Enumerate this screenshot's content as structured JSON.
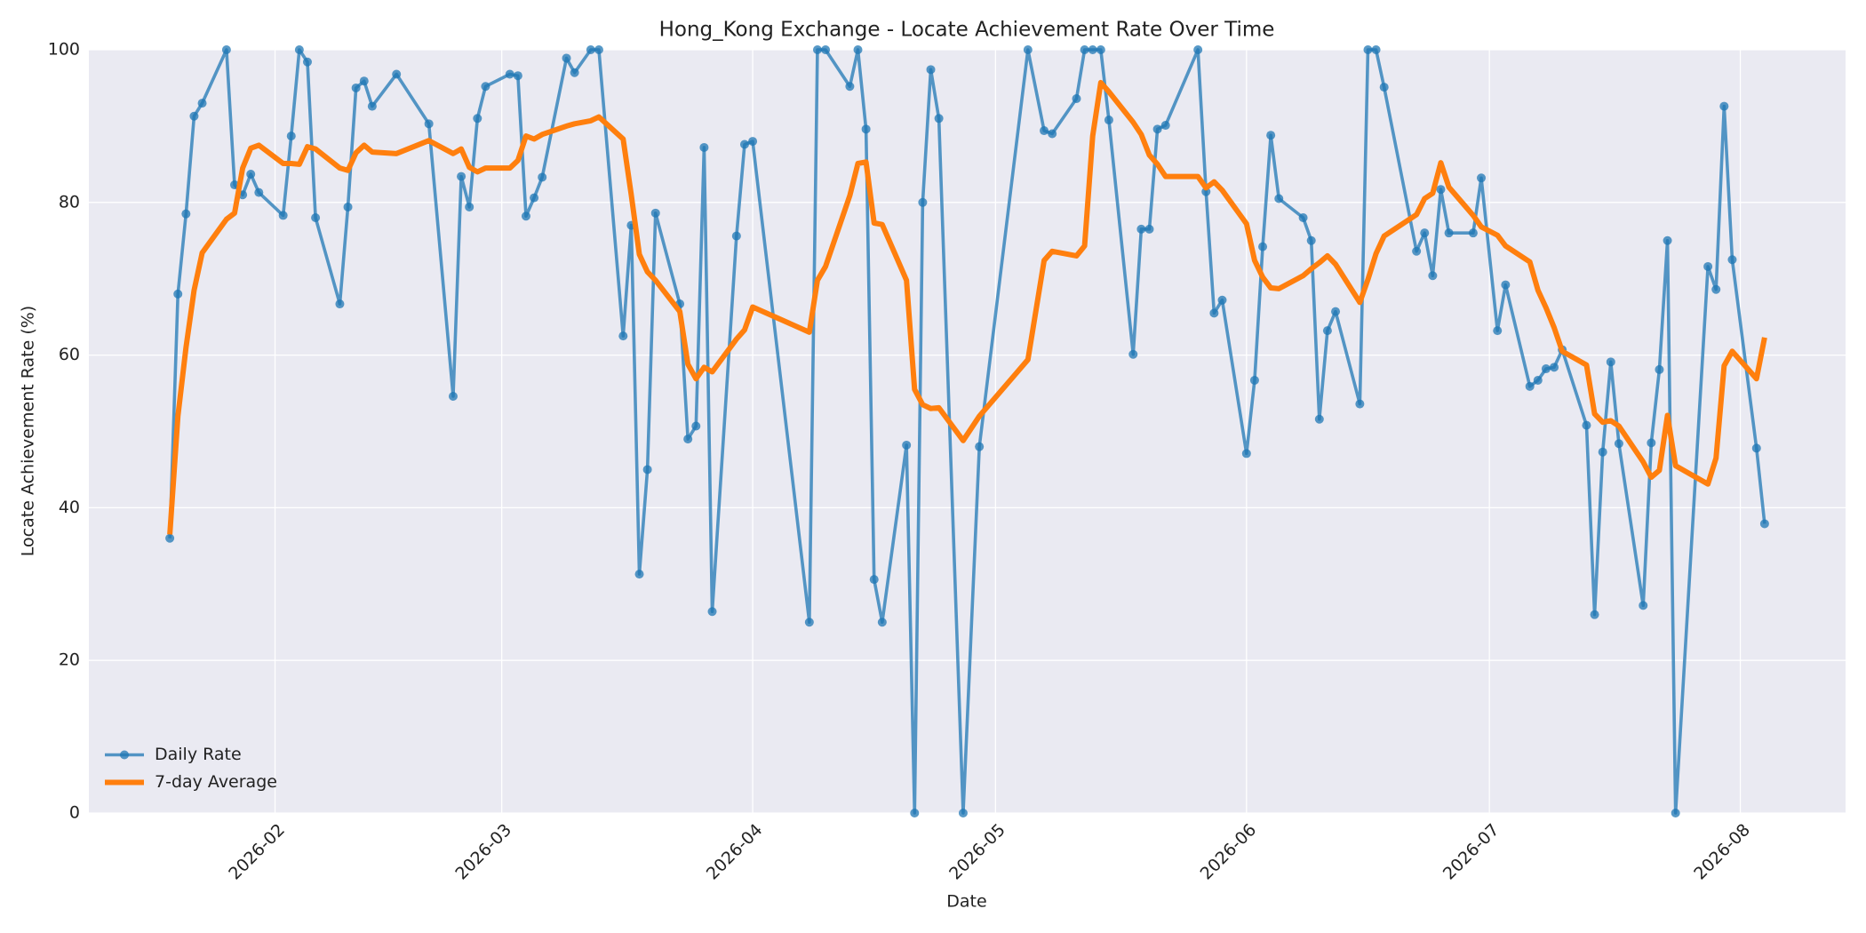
{
  "chart_data": {
    "type": "line",
    "title": "Hong_Kong Exchange - Locate Achievement Rate Over Time",
    "xlabel": "Date",
    "ylabel": "Locate Achievement Rate (%)",
    "x": [
      "2026-01-19",
      "2026-01-20",
      "2026-01-21",
      "2026-01-22",
      "2026-01-23",
      "2026-01-26",
      "2026-01-27",
      "2026-01-28",
      "2026-01-29",
      "2026-01-30",
      "2026-02-02",
      "2026-02-03",
      "2026-02-04",
      "2026-02-05",
      "2026-02-06",
      "2026-02-09",
      "2026-02-10",
      "2026-02-11",
      "2026-02-12",
      "2026-02-13",
      "2026-02-16",
      "2026-02-20",
      "2026-02-23",
      "2026-02-24",
      "2026-02-25",
      "2026-02-26",
      "2026-02-27",
      "2026-03-02",
      "2026-03-03",
      "2026-03-04",
      "2026-03-05",
      "2026-03-06",
      "2026-03-09",
      "2026-03-10",
      "2026-03-12",
      "2026-03-13",
      "2026-03-16",
      "2026-03-17",
      "2026-03-18",
      "2026-03-19",
      "2026-03-20",
      "2026-03-23",
      "2026-03-24",
      "2026-03-25",
      "2026-03-26",
      "2026-03-27",
      "2026-03-30",
      "2026-03-31",
      "2026-04-01",
      "2026-04-08",
      "2026-04-09",
      "2026-04-10",
      "2026-04-13",
      "2026-04-14",
      "2026-04-15",
      "2026-04-16",
      "2026-04-17",
      "2026-04-20",
      "2026-04-21",
      "2026-04-22",
      "2026-04-23",
      "2026-04-24",
      "2026-04-27",
      "2026-04-29",
      "2026-05-05",
      "2026-05-07",
      "2026-05-08",
      "2026-05-11",
      "2026-05-12",
      "2026-05-13",
      "2026-05-14",
      "2026-05-15",
      "2026-05-18",
      "2026-05-19",
      "2026-05-20",
      "2026-05-21",
      "2026-05-22",
      "2026-05-26",
      "2026-05-27",
      "2026-05-28",
      "2026-05-29",
      "2026-06-01",
      "2026-06-02",
      "2026-06-03",
      "2026-06-04",
      "2026-06-05",
      "2026-06-08",
      "2026-06-09",
      "2026-06-10",
      "2026-06-11",
      "2026-06-12",
      "2026-06-15",
      "2026-06-16",
      "2026-06-17",
      "2026-06-18",
      "2026-06-22",
      "2026-06-23",
      "2026-06-24",
      "2026-06-25",
      "2026-06-26",
      "2026-06-29",
      "2026-06-30",
      "2026-07-02",
      "2026-07-03",
      "2026-07-06",
      "2026-07-07",
      "2026-07-08",
      "2026-07-09",
      "2026-07-10",
      "2026-07-13",
      "2026-07-14",
      "2026-07-15",
      "2026-07-16",
      "2026-07-17",
      "2026-07-20",
      "2026-07-21",
      "2026-07-22",
      "2026-07-23",
      "2026-07-24",
      "2026-07-28",
      "2026-07-29",
      "2026-07-30",
      "2026-07-31",
      "2026-08-03",
      "2026-08-04"
    ],
    "series": [
      {
        "name": "Daily Rate",
        "color": "#1f77b4",
        "marker": true,
        "values": [
          36,
          68,
          78.5,
          91.3,
          93,
          100,
          82.3,
          81,
          83.7,
          81.3,
          78.3,
          88.7,
          100,
          98.4,
          78,
          66.7,
          79.4,
          95,
          95.9,
          92.6,
          96.8,
          90.3,
          54.6,
          83.4,
          79.4,
          91,
          95.2,
          96.8,
          96.6,
          78.2,
          80.6,
          83.3,
          98.9,
          97,
          100,
          100,
          62.5,
          77,
          31.3,
          45,
          78.6,
          66.7,
          49,
          50.7,
          87.2,
          26.4,
          75.6,
          87.6,
          88,
          25,
          100,
          100,
          95.2,
          100,
          89.6,
          30.6,
          25,
          48.2,
          0,
          80,
          97.4,
          91,
          0,
          48,
          100,
          89.4,
          89,
          93.6,
          100,
          100,
          100,
          90.8,
          60.1,
          76.5,
          76.5,
          89.6,
          90.1,
          100,
          81.4,
          65.5,
          67.2,
          47.1,
          56.7,
          74.2,
          88.8,
          80.5,
          78,
          75,
          51.6,
          63.2,
          65.7,
          53.6,
          100,
          100,
          95.1,
          73.6,
          76,
          70.4,
          81.7,
          76,
          76,
          83.2,
          63.2,
          69.2,
          55.9,
          56.7,
          58.2,
          58.4,
          60.7,
          50.8,
          26,
          47.3,
          59.1,
          48.4,
          27.2,
          48.5,
          58.1,
          75,
          0,
          71.6,
          68.6,
          92.6,
          72.5,
          47.8,
          37.9
        ]
      },
      {
        "name": "7-day Average",
        "color": "#ff7f0e",
        "marker": false,
        "values": [
          36.5,
          52,
          61,
          68.5,
          73.4,
          77.8,
          78.6,
          84.5,
          87.1,
          87.5,
          85.1,
          85.1,
          85,
          87.3,
          87,
          84.5,
          84.2,
          86.5,
          87.5,
          86.6,
          86.4,
          88.1,
          86.4,
          87,
          84.6,
          84,
          84.5,
          84.5,
          85.5,
          88.7,
          88.3,
          88.9,
          90,
          90.3,
          90.7,
          91.2,
          88.3,
          81,
          73.2,
          70.9,
          69.8,
          65.7,
          58.8,
          56.9,
          58.4,
          57.8,
          62.1,
          63.3,
          66.3,
          63,
          69.8,
          71.6,
          80.9,
          85.1,
          85.3,
          77.3,
          77.1,
          69.8,
          55.5,
          53.5,
          53,
          53.1,
          48.8,
          52,
          59.4,
          72.4,
          73.6,
          73,
          74.3,
          88.7,
          95.7,
          94.5,
          90.5,
          88.9,
          86.2,
          85,
          83.4,
          83.4,
          81.9,
          82.7,
          81.6,
          77.2,
          72.4,
          70.2,
          68.8,
          68.7,
          70.4,
          71.3,
          72.1,
          73,
          71.9,
          66.9,
          69.9,
          73.3,
          75.6,
          78.4,
          80.5,
          81.2,
          85.2,
          82,
          78.3,
          76.8,
          75.7,
          74.3,
          72.2,
          68.5,
          66.2,
          63.6,
          60.5,
          58.7,
          52.3,
          51.2,
          51.4,
          50.7,
          46,
          44,
          44.9,
          52.1,
          45.5,
          43.1,
          46.5,
          58.6,
          60.5,
          56.9,
          62.3
        ]
      }
    ],
    "xlim": [
      "2026-01-09",
      "2026-08-14"
    ],
    "xticks": [
      {
        "value": "2026-02-01",
        "label": "2026-02"
      },
      {
        "value": "2026-03-01",
        "label": "2026-03"
      },
      {
        "value": "2026-04-01",
        "label": "2026-04"
      },
      {
        "value": "2026-05-01",
        "label": "2026-05"
      },
      {
        "value": "2026-06-01",
        "label": "2026-06"
      },
      {
        "value": "2026-07-01",
        "label": "2026-07"
      },
      {
        "value": "2026-08-01",
        "label": "2026-08"
      }
    ],
    "ylim": [
      0,
      100
    ],
    "yticks": [
      0,
      20,
      40,
      60,
      80,
      100
    ],
    "grid": true,
    "legend": "lower left"
  }
}
